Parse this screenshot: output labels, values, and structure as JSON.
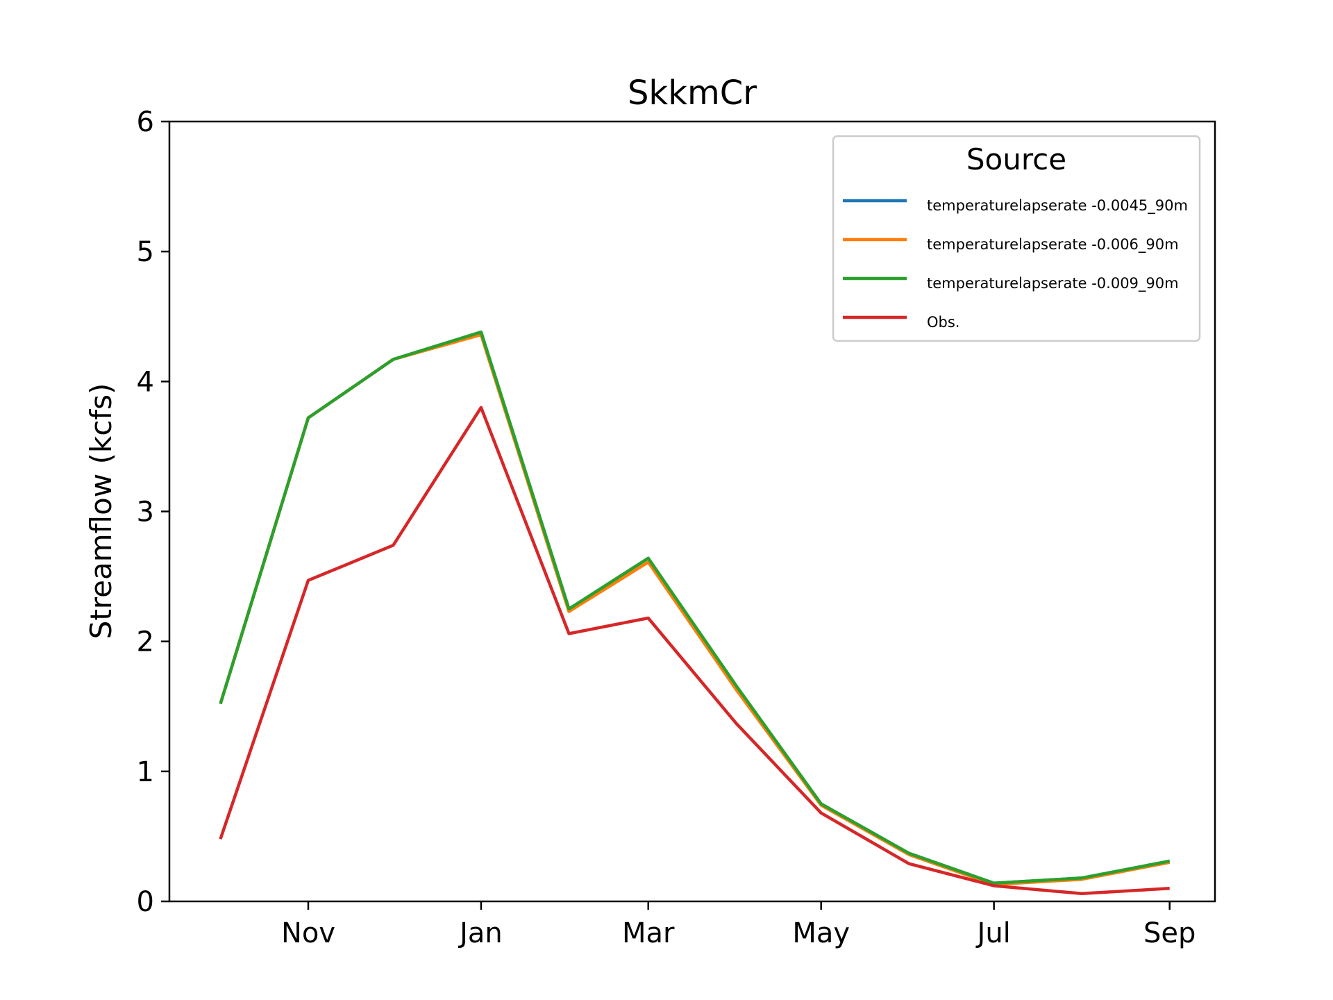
{
  "chart_data": {
    "type": "line",
    "title": "SkkmCr",
    "xlabel": "",
    "ylabel": "Streamflow (kcfs)",
    "ylim": [
      0,
      6
    ],
    "yticks": [
      "0",
      "1",
      "2",
      "3",
      "4",
      "5",
      "6"
    ],
    "xticks": [
      "Nov",
      "Jan",
      "Mar",
      "May",
      "Jul",
      "Sep"
    ],
    "xtick_dates": [
      "2020-11-01",
      "2021-01-01",
      "2021-03-01",
      "2021-05-01",
      "2021-07-01",
      "2021-09-01"
    ],
    "xlim": [
      "2020-09-13",
      "2021-09-17"
    ],
    "x": [
      "2020-10-01",
      "2020-11-01",
      "2020-12-01",
      "2021-01-01",
      "2021-02-01",
      "2021-03-01",
      "2021-04-01",
      "2021-05-01",
      "2021-06-01",
      "2021-07-01",
      "2021-08-01",
      "2021-09-01"
    ],
    "grid": false,
    "legend": {
      "title": "Source",
      "placement": "upper right"
    },
    "series": [
      {
        "name": "temperaturelapserate -0.0045_90m",
        "color": "#1f77b4",
        "values": [
          1.52,
          3.72,
          4.17,
          4.38,
          2.25,
          2.64,
          1.65,
          0.75,
          0.37,
          0.14,
          0.18,
          0.31
        ]
      },
      {
        "name": "temperaturelapserate -0.006_90m",
        "color": "#ff7f0e",
        "values": [
          1.52,
          3.72,
          4.17,
          4.36,
          2.23,
          2.61,
          1.63,
          0.74,
          0.36,
          0.13,
          0.17,
          0.3
        ]
      },
      {
        "name": "temperaturelapserate -0.009_90m",
        "color": "#2ca02c",
        "values": [
          1.52,
          3.72,
          4.17,
          4.38,
          2.25,
          2.64,
          1.66,
          0.75,
          0.37,
          0.14,
          0.18,
          0.31
        ]
      },
      {
        "name": "Obs.",
        "color": "#d62728",
        "values": [
          0.48,
          2.47,
          2.74,
          3.8,
          2.06,
          2.18,
          1.37,
          0.68,
          0.29,
          0.12,
          0.06,
          0.1
        ]
      }
    ]
  }
}
